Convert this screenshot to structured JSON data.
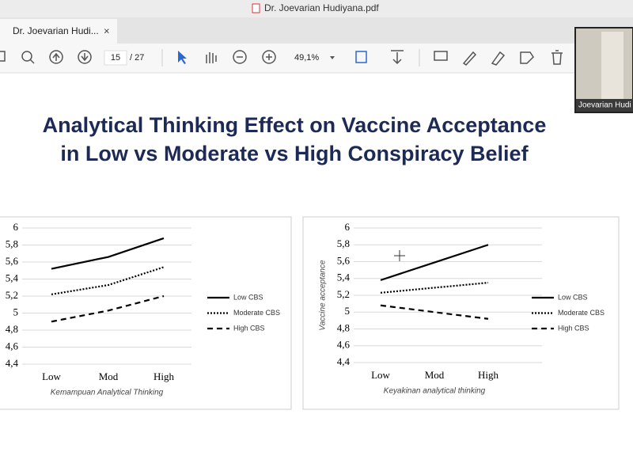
{
  "window": {
    "title": "Dr. Joevarian Hudiyana.pdf",
    "tab": "Dr. Joevarian Hudi...",
    "participant": "Joevarian Hudi"
  },
  "toolbar": {
    "page": "15",
    "total": "/ 27",
    "zoom": "49,1%"
  },
  "slide": {
    "title_line1": "Analytical Thinking Effect on Vaccine Acceptance",
    "title_line2": "in Low vs Moderate vs High Conspiracy Belief"
  },
  "chart_data": [
    {
      "type": "line",
      "x_label": "Kemampuan Analytical Thinking",
      "categories": [
        "Low",
        "Mod",
        "High"
      ],
      "ylim": [
        4.4,
        6
      ],
      "yticks": [
        {
          "value": 4.4,
          "label": "4,4"
        },
        {
          "value": 4.6,
          "label": "4,6"
        },
        {
          "value": 4.8,
          "label": "4,8"
        },
        5,
        {
          "value": 5.2,
          "label": "5,2"
        },
        {
          "value": 5.4,
          "label": "5,4"
        },
        {
          "value": 5.6,
          "label": "5,6"
        },
        {
          "value": 5.8,
          "label": "5,8"
        },
        6
      ],
      "grid": true,
      "series": [
        {
          "name": "Low CBS",
          "color": "#000000",
          "dash": "solid",
          "values": [
            5.52,
            5.66,
            5.88
          ]
        },
        {
          "name": "Moderate CBS",
          "color": "#000000",
          "dash": "dotted",
          "values": [
            5.22,
            5.33,
            5.54
          ]
        },
        {
          "name": "High CBS",
          "color": "#000000",
          "dash": "dashed",
          "values": [
            4.9,
            5.03,
            5.2
          ]
        }
      ]
    },
    {
      "type": "line",
      "x_label": "Keyakinan analytical thinking",
      "y_label": "Vaccine acceptance",
      "categories": [
        "Low",
        "Mod",
        "High"
      ],
      "ylim": [
        4.4,
        6
      ],
      "yticks": [
        {
          "value": 4.4,
          "label": "4,4"
        },
        {
          "value": 4.6,
          "label": "4,6"
        },
        {
          "value": 4.8,
          "label": "4,8"
        },
        5,
        {
          "value": 5.2,
          "label": "5,2"
        },
        {
          "value": 5.4,
          "label": "5,4"
        },
        {
          "value": 5.6,
          "label": "5,6"
        },
        {
          "value": 5.8,
          "label": "5,8"
        },
        6
      ],
      "grid": true,
      "series": [
        {
          "name": "Low CBS",
          "color": "#000000",
          "dash": "solid",
          "values": [
            5.38,
            5.59,
            5.8
          ]
        },
        {
          "name": "Moderate CBS",
          "color": "#000000",
          "dash": "dotted",
          "values": [
            5.23,
            5.29,
            5.35
          ]
        },
        {
          "name": "High CBS",
          "color": "#000000",
          "dash": "dashed",
          "values": [
            5.08,
            5.0,
            4.92
          ]
        }
      ]
    }
  ]
}
